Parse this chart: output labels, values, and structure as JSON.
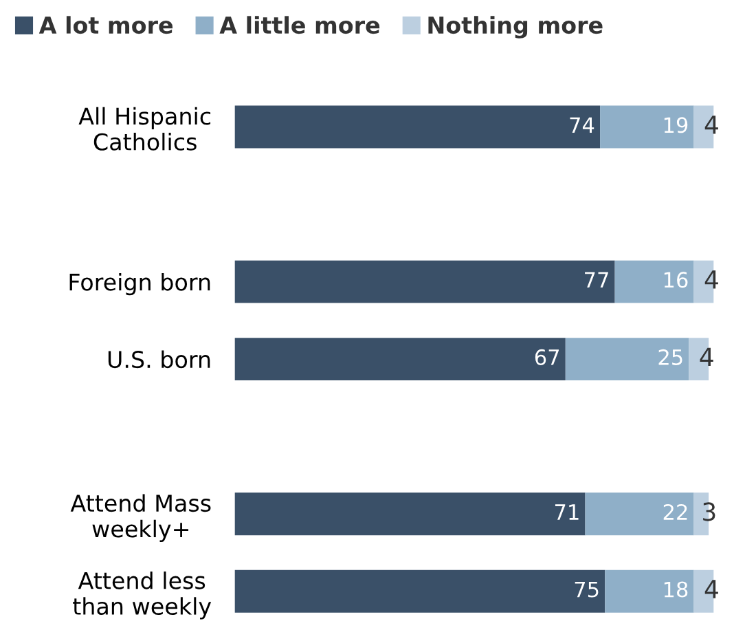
{
  "chart_data": {
    "type": "bar",
    "orientation": "horizontal",
    "stacked": true,
    "data_labels": true,
    "legend": "top",
    "grid": false,
    "tick_labels": "y",
    "categories": [
      "All Hispanic\nCatholics",
      null,
      "Foreign born",
      "U.S. born",
      null,
      "Attend Mass\nweekly+",
      "Attend less\nthan weekly"
    ],
    "series": [
      {
        "name": "A lot more",
        "color": "#3a5068",
        "values": [
          74,
          null,
          77,
          67,
          null,
          71,
          75
        ]
      },
      {
        "name": "A little more",
        "color": "#8fafc8",
        "values": [
          19,
          null,
          16,
          25,
          null,
          22,
          18
        ]
      },
      {
        "name": "Nothing more",
        "color": "#bccfe0",
        "values": [
          4,
          null,
          4,
          4,
          null,
          3,
          4
        ]
      }
    ]
  }
}
